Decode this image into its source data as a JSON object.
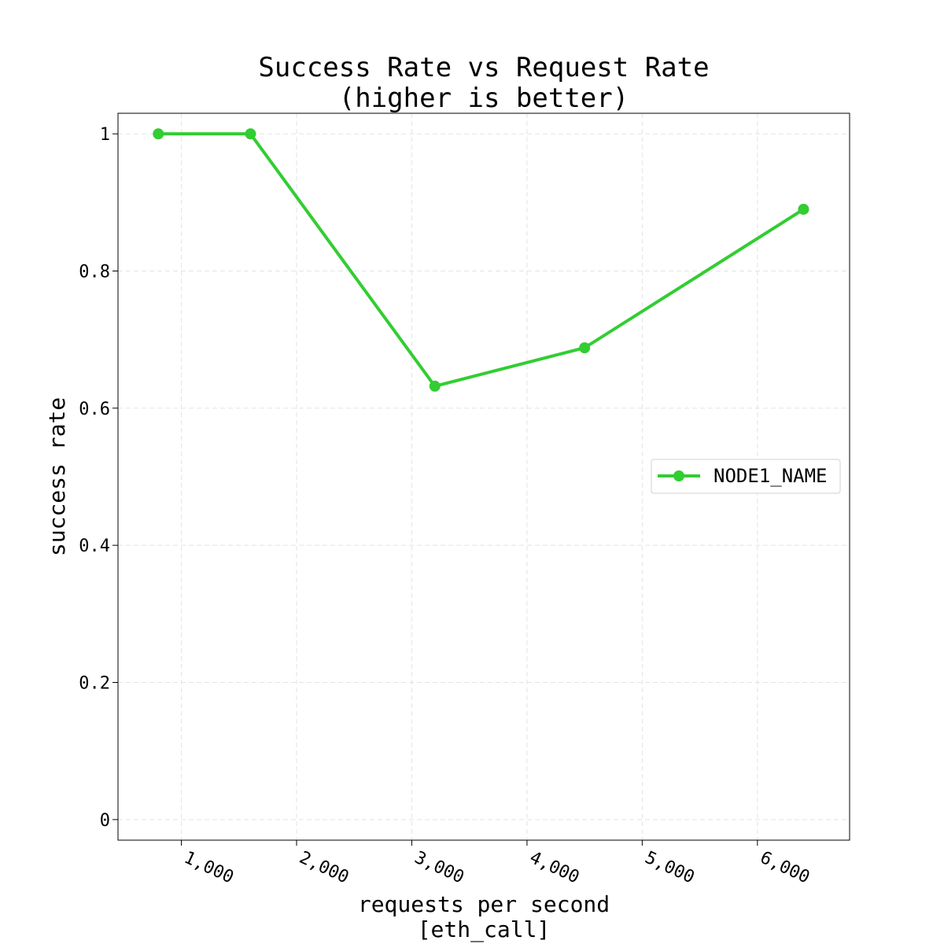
{
  "chart_data": {
    "type": "line",
    "title_lines": [
      "Success Rate vs Request Rate",
      "(higher is better)"
    ],
    "xlabel_lines": [
      "requests per second",
      "[eth_call]"
    ],
    "ylabel": "success rate",
    "x_ticks": [
      1000,
      2000,
      3000,
      4000,
      5000,
      6000
    ],
    "x_tick_labels": [
      "1,000",
      "2,000",
      "3,000",
      "4,000",
      "5,000",
      "6,000"
    ],
    "y_ticks": [
      0,
      0.2,
      0.4,
      0.6,
      0.8,
      1
    ],
    "y_tick_labels": [
      "0",
      "0.2",
      "0.4",
      "0.6",
      "0.8",
      "1"
    ],
    "xlim": [
      450,
      6800
    ],
    "ylim": [
      -0.03,
      1.03
    ],
    "grid": true,
    "legend_position": "center-right",
    "series": [
      {
        "name": "NODE1_NAME",
        "color": "#32cd32",
        "x": [
          800,
          1600,
          3200,
          4500,
          6400
        ],
        "y": [
          1.0,
          1.0,
          0.632,
          0.688,
          0.89
        ]
      }
    ]
  }
}
